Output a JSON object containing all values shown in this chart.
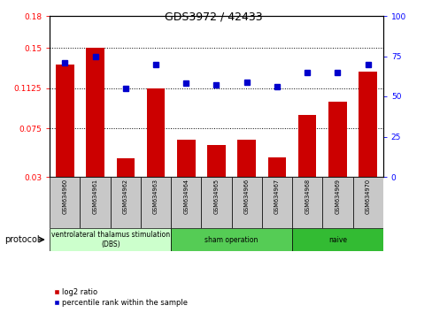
{
  "title": "GDS3972 / 42433",
  "samples": [
    "GSM634960",
    "GSM634961",
    "GSM634962",
    "GSM634963",
    "GSM634964",
    "GSM634965",
    "GSM634966",
    "GSM634967",
    "GSM634968",
    "GSM634969",
    "GSM634970"
  ],
  "log2_ratio": [
    0.135,
    0.15,
    0.047,
    0.1125,
    0.065,
    0.06,
    0.065,
    0.048,
    0.088,
    0.1,
    0.128
  ],
  "percentile_rank": [
    71,
    75,
    55,
    70,
    58,
    57,
    59,
    56,
    65,
    65,
    70
  ],
  "left_ylim": [
    0.03,
    0.18
  ],
  "left_yticks": [
    0.03,
    0.075,
    0.1125,
    0.15,
    0.18
  ],
  "right_ylim": [
    0,
    100
  ],
  "right_yticks": [
    0,
    25,
    50,
    75,
    100
  ],
  "bar_color": "#cc0000",
  "dot_color": "#0000cc",
  "group_colors": [
    "#ccffcc",
    "#55cc55",
    "#33bb33"
  ],
  "groups": [
    {
      "label": "ventrolateral thalamus stimulation\n(DBS)",
      "start": 0,
      "end": 3
    },
    {
      "label": "sham operation",
      "start": 4,
      "end": 7
    },
    {
      "label": "naive",
      "start": 8,
      "end": 10
    }
  ],
  "protocol_label": "protocol",
  "legend_bar_label": "log2 ratio",
  "legend_dot_label": "percentile rank within the sample",
  "tick_label_bg": "#c8c8c8"
}
